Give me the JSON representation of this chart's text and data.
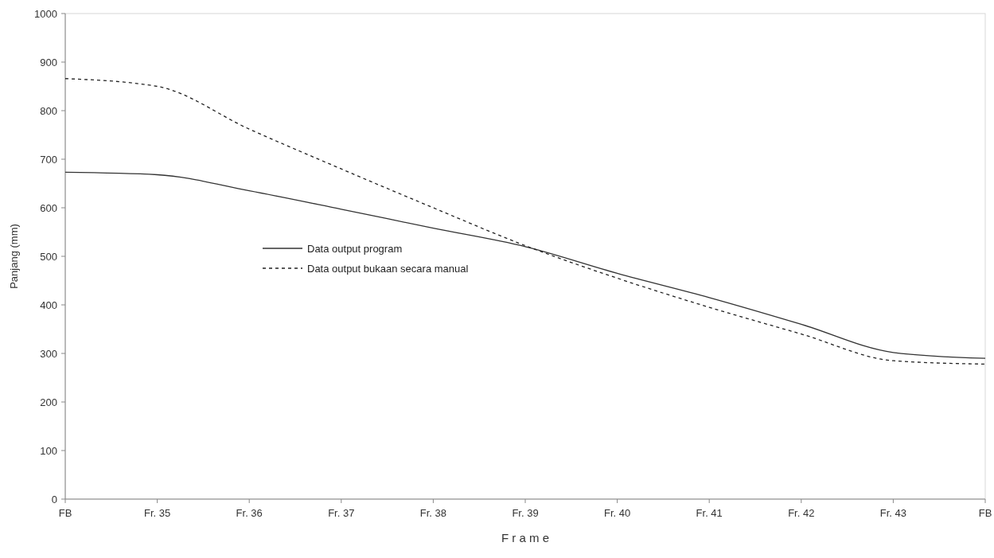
{
  "chart_data": {
    "type": "line",
    "xlabel": "F r a m e",
    "ylabel": "Panjang (mm)",
    "categories": [
      "FB",
      "Fr. 35",
      "Fr. 36",
      "Fr. 37",
      "Fr. 38",
      "Fr. 39",
      "Fr. 40",
      "Fr. 41",
      "Fr. 42",
      "Fr. 43",
      "FB"
    ],
    "series": [
      {
        "name": "Data output program",
        "color": "#333333",
        "line_style": "solid",
        "values": [
          673,
          668,
          635,
          597,
          558,
          520,
          465,
          415,
          360,
          302,
          290
        ]
      },
      {
        "name": "Data output bukaan secara manual",
        "color": "#222222",
        "line_style": "dashed",
        "values": [
          866,
          850,
          762,
          680,
          600,
          522,
          455,
          395,
          340,
          285,
          278
        ]
      }
    ],
    "ylim": [
      0,
      1000
    ],
    "yticks": [
      0,
      100,
      200,
      300,
      400,
      500,
      600,
      700,
      800,
      900,
      1000
    ],
    "grid": false,
    "legend": "center",
    "marker": "none"
  }
}
